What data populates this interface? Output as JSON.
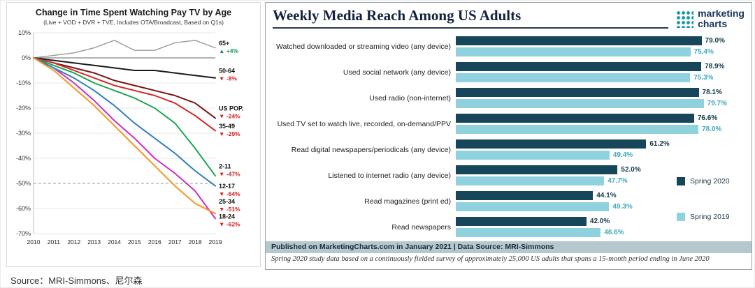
{
  "source_line": "Source：MRI-Simmons、尼尔森",
  "logo": {
    "line1": "marketing",
    "line2": "charts"
  },
  "footer_bar": "Published on MarketingCharts.com in January 2021 | Data Source: MRI-Simmons",
  "footnote": "Spring 2020 study data based on a continuously fielded survey of approximately 25,000 US adults that spans a 15-month period ending in June 2020",
  "chart_data": [
    {
      "type": "line",
      "title": "Change in Time Spent Watching Pay TV by Age",
      "subtitle": "(Live + VOD + DVR + TVE, Includes OTA/Broadcast, Based on Q1s)",
      "x": [
        2010,
        2011,
        2012,
        2013,
        2014,
        2015,
        2016,
        2017,
        2018,
        2019
      ],
      "ylim": [
        -70,
        10
      ],
      "ytick_step": 10,
      "ytick_suffix": "%",
      "dashed_line_y": -50,
      "grid": true,
      "series": [
        {
          "name": "65+",
          "color": "#999999",
          "change": "+4%",
          "label_y": 5,
          "values": [
            0,
            1,
            2,
            4,
            7,
            3,
            3,
            6,
            7,
            4
          ]
        },
        {
          "name": "50-64",
          "color": "#1a1a1a",
          "change": "-8%",
          "label_y": -6,
          "values": [
            0,
            -1,
            -2,
            -3,
            -4,
            -5,
            -5,
            -6,
            -7,
            -8
          ]
        },
        {
          "name": "US POP.",
          "color": "#7a1616",
          "change": "-24%",
          "label_y": -21,
          "values": [
            0,
            -2,
            -4,
            -6,
            -9,
            -11,
            -13,
            -15,
            -18,
            -24
          ]
        },
        {
          "name": "35-49",
          "color": "#d62728",
          "change": "-29%",
          "label_y": -28,
          "values": [
            0,
            -2,
            -5,
            -8,
            -11,
            -13,
            -15,
            -18,
            -23,
            -29
          ]
        },
        {
          "name": "2-11",
          "color": "#19a74f",
          "change": "-47%",
          "label_y": -44,
          "values": [
            0,
            -3,
            -6,
            -10,
            -13,
            -16,
            -20,
            -26,
            -36,
            -47
          ]
        },
        {
          "name": "12-17",
          "color": "#cc2fc0",
          "change": "-64%",
          "label_y": -52,
          "values": [
            0,
            -4,
            -10,
            -17,
            -25,
            -32,
            -40,
            -46,
            -53,
            -64
          ]
        },
        {
          "name": "25-34",
          "color": "#2f7fc1",
          "change": "-51%",
          "label_y": -58,
          "values": [
            0,
            -4,
            -8,
            -13,
            -19,
            -26,
            -32,
            -38,
            -45,
            -51
          ]
        },
        {
          "name": "18-24",
          "color": "#f79420",
          "change": "-62%",
          "label_y": -64,
          "values": [
            0,
            -5,
            -12,
            -19,
            -27,
            -35,
            -43,
            -51,
            -58,
            -62
          ]
        }
      ]
    },
    {
      "type": "bar",
      "orientation": "horizontal",
      "title": "Weekly Media Reach Among US Adults",
      "categories": [
        "Watched downloaded or streaming video (any device)",
        "Used social network (any device)",
        "Used radio (non-internet)",
        "Used TV set to watch live, recorded, on-demand/PPV",
        "Read digital newspapers/periodicals (any device)",
        "Listened to internet radio (any device)",
        "Read magazines (print ed)",
        "Read newspapers"
      ],
      "series": [
        {
          "name": "Spring 2020",
          "color": "#17455a",
          "values": [
            79.0,
            78.9,
            78.1,
            76.6,
            61.2,
            52.0,
            44.1,
            42.0
          ]
        },
        {
          "name": "Spring 2019",
          "color": "#8fd2de",
          "values": [
            75.4,
            75.3,
            79.7,
            78.0,
            49.4,
            47.7,
            49.3,
            46.6
          ]
        }
      ],
      "xlim": [
        0,
        100
      ],
      "value_label_format": "0.0%",
      "legend_position": "right"
    }
  ]
}
